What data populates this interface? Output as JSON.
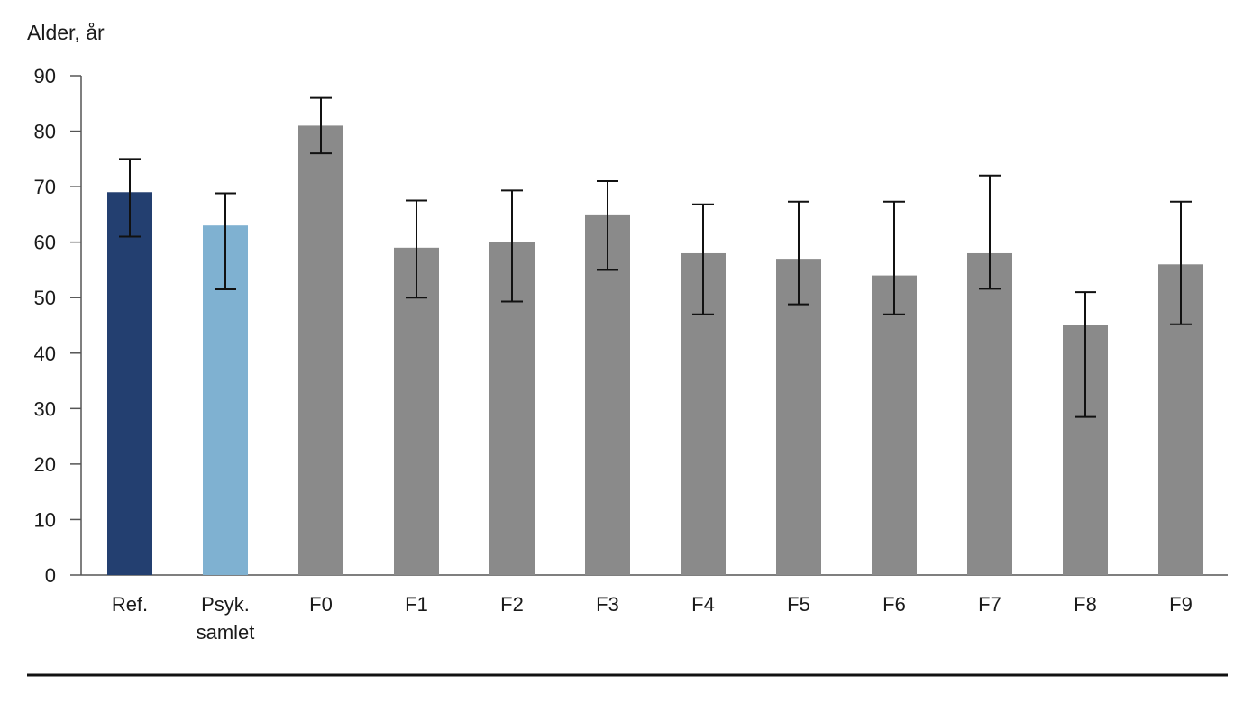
{
  "chart_data": {
    "type": "bar",
    "ylabel": "Alder, år",
    "xlabel": "",
    "ylim": [
      0,
      90
    ],
    "yticks": [
      0,
      10,
      20,
      30,
      40,
      50,
      60,
      70,
      80,
      90
    ],
    "grid": false,
    "legend": "none",
    "categories": [
      "Ref.",
      "Psyk. samlet",
      "F0",
      "F1",
      "F2",
      "F3",
      "F4",
      "F5",
      "F6",
      "F7",
      "F8",
      "F9"
    ],
    "category_lines": [
      [
        "Ref."
      ],
      [
        "Psyk.",
        "samlet"
      ],
      [
        "F0"
      ],
      [
        "F1"
      ],
      [
        "F2"
      ],
      [
        "F3"
      ],
      [
        "F4"
      ],
      [
        "F5"
      ],
      [
        "F6"
      ],
      [
        "F7"
      ],
      [
        "F8"
      ],
      [
        "F9"
      ]
    ],
    "values": [
      69,
      63,
      81,
      59,
      60,
      65,
      58,
      57,
      54,
      58,
      45,
      56
    ],
    "error_low": [
      61,
      51.5,
      76,
      50,
      49.3,
      55,
      47,
      48.8,
      47,
      51.6,
      28.5,
      45.2
    ],
    "error_high": [
      75,
      68.8,
      86,
      67.5,
      69.3,
      71,
      66.8,
      67.3,
      67.3,
      72,
      51,
      67.3
    ],
    "colors": [
      "#233f70",
      "#7fb1d1",
      "#8a8a8a",
      "#8a8a8a",
      "#8a8a8a",
      "#8a8a8a",
      "#8a8a8a",
      "#8a8a8a",
      "#8a8a8a",
      "#8a8a8a",
      "#8a8a8a",
      "#8a8a8a"
    ]
  }
}
